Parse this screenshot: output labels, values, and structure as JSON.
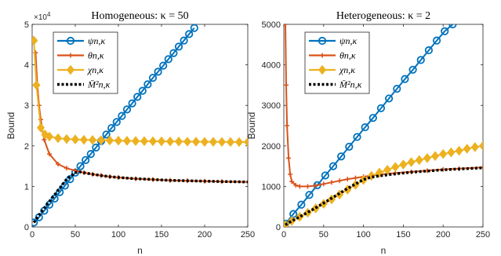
{
  "chart_data": [
    {
      "type": "line",
      "title": "Homogeneous: κ = 50",
      "xlabel": "n",
      "ylabel": "Bound",
      "xlim": [
        0,
        250
      ],
      "ylim": [
        0,
        50000
      ],
      "xticks": [
        0,
        50,
        100,
        150,
        200,
        250
      ],
      "yticks": [
        0,
        10000,
        20000,
        30000,
        40000,
        50000
      ],
      "ytick_labels": [
        "0",
        "1",
        "2",
        "3",
        "4",
        "5"
      ],
      "y_exponent_label": "×10",
      "y_exponent_power": "4",
      "legend_position": "top-left",
      "series": [
        {
          "name": "ψn,κ",
          "color": "#0072BD",
          "marker": "circle",
          "x": [
            2,
            8,
            14,
            20,
            26,
            32,
            38,
            44,
            50,
            56,
            62,
            68,
            74,
            80,
            86,
            92,
            98,
            104,
            110,
            116,
            122,
            128,
            134,
            140,
            146,
            152,
            158,
            164,
            170,
            176,
            182,
            188
          ],
          "y": [
            1100,
            2400,
            4000,
            5500,
            7000,
            8600,
            10200,
            11800,
            13400,
            15000,
            16500,
            18000,
            19600,
            21200,
            22800,
            24400,
            25900,
            27400,
            29000,
            30500,
            32100,
            33600,
            35200,
            36800,
            38300,
            39800,
            41400,
            42900,
            44500,
            46000,
            47600,
            49100
          ]
        },
        {
          "name": "θn,κ",
          "color": "#D95319",
          "marker": "plus",
          "x": [
            4,
            6,
            8,
            10,
            14,
            20,
            30,
            40,
            50,
            60,
            70,
            80,
            90,
            100,
            120,
            140,
            160,
            180,
            200,
            220,
            250
          ],
          "y": [
            43000,
            35000,
            30000,
            26500,
            21500,
            18000,
            15500,
            14500,
            13900,
            13400,
            13000,
            12700,
            12400,
            12200,
            11900,
            11700,
            11500,
            11400,
            11300,
            11200,
            11100
          ]
        },
        {
          "name": "χn,κ",
          "color": "#EDB120",
          "marker": "diamond",
          "x": [
            2,
            5,
            10,
            15,
            20,
            30,
            40,
            50,
            60,
            70,
            80,
            90,
            100,
            110,
            120,
            130,
            140,
            150,
            160,
            170,
            180,
            190,
            200,
            210,
            220,
            230,
            240,
            250
          ],
          "y": [
            46000,
            35000,
            24500,
            22800,
            22300,
            21900,
            21700,
            21600,
            21500,
            21450,
            21400,
            21350,
            21300,
            21250,
            21200,
            21180,
            21150,
            21120,
            21100,
            21080,
            21050,
            21030,
            21000,
            21000,
            20980,
            20960,
            20950,
            20950
          ]
        },
        {
          "name": "M̄²n,κ",
          "color": "#000000",
          "marker": "none",
          "linestyle": "dotted",
          "x": [
            2,
            10,
            20,
            30,
            40,
            50,
            55,
            60,
            70,
            80,
            90,
            100,
            120,
            140,
            160,
            180,
            200,
            220,
            250
          ],
          "y": [
            1100,
            3500,
            6300,
            9000,
            11800,
            13400,
            13600,
            13400,
            13000,
            12700,
            12400,
            12200,
            11900,
            11700,
            11500,
            11400,
            11300,
            11200,
            11100
          ]
        }
      ]
    },
    {
      "type": "line",
      "title": "Heterogeneous: κ = 2",
      "xlabel": "n",
      "ylabel": "Bound",
      "xlim": [
        0,
        250
      ],
      "ylim": [
        0,
        5000
      ],
      "xticks": [
        0,
        50,
        100,
        150,
        200,
        250
      ],
      "yticks": [
        0,
        1000,
        2000,
        3000,
        4000,
        5000
      ],
      "ytick_labels": [
        "0",
        "1000",
        "2000",
        "3000",
        "4000",
        "5000"
      ],
      "legend_position": "top-left",
      "series": [
        {
          "name": "ψn,κ",
          "color": "#0072BD",
          "marker": "circle",
          "x": [
            2,
            12,
            22,
            32,
            42,
            52,
            62,
            72,
            82,
            92,
            102,
            112,
            122,
            132,
            142,
            152,
            162,
            172,
            182,
            192,
            202,
            212
          ],
          "y": [
            80,
            320,
            550,
            790,
            1030,
            1270,
            1500,
            1740,
            1980,
            2220,
            2460,
            2690,
            2930,
            3170,
            3410,
            3650,
            3880,
            4120,
            4360,
            4600,
            4830,
            5000
          ]
        },
        {
          "name": "θn,κ",
          "color": "#D95319",
          "marker": "plus",
          "x": [
            2,
            3,
            4,
            6,
            8,
            10,
            15,
            20,
            30,
            40,
            50,
            60,
            70,
            80,
            90,
            100,
            120,
            140,
            160,
            180,
            200,
            220,
            250
          ],
          "y": [
            5000,
            3500,
            2500,
            1700,
            1300,
            1120,
            1030,
            1000,
            1000,
            1020,
            1060,
            1100,
            1140,
            1180,
            1210,
            1240,
            1290,
            1330,
            1360,
            1390,
            1420,
            1440,
            1470
          ]
        },
        {
          "name": "χn,κ",
          "color": "#EDB120",
          "marker": "diamond",
          "x": [
            2,
            10,
            20,
            30,
            40,
            50,
            60,
            70,
            80,
            90,
            100,
            110,
            120,
            130,
            140,
            150,
            160,
            170,
            180,
            190,
            200,
            210,
            220,
            230,
            240,
            250
          ],
          "y": [
            50,
            150,
            250,
            350,
            460,
            570,
            680,
            800,
            920,
            1040,
            1160,
            1260,
            1340,
            1410,
            1480,
            1540,
            1600,
            1650,
            1700,
            1750,
            1800,
            1840,
            1880,
            1930,
            1970,
            2000
          ]
        },
        {
          "name": "M̄²n,κ",
          "color": "#000000",
          "marker": "none",
          "linestyle": "dotted",
          "x": [
            2,
            10,
            20,
            30,
            40,
            50,
            60,
            70,
            80,
            90,
            100,
            110,
            120,
            140,
            160,
            180,
            200,
            220,
            250
          ],
          "y": [
            50,
            150,
            250,
            360,
            470,
            590,
            710,
            830,
            950,
            1060,
            1170,
            1230,
            1260,
            1310,
            1350,
            1380,
            1410,
            1430,
            1460
          ]
        }
      ]
    }
  ]
}
